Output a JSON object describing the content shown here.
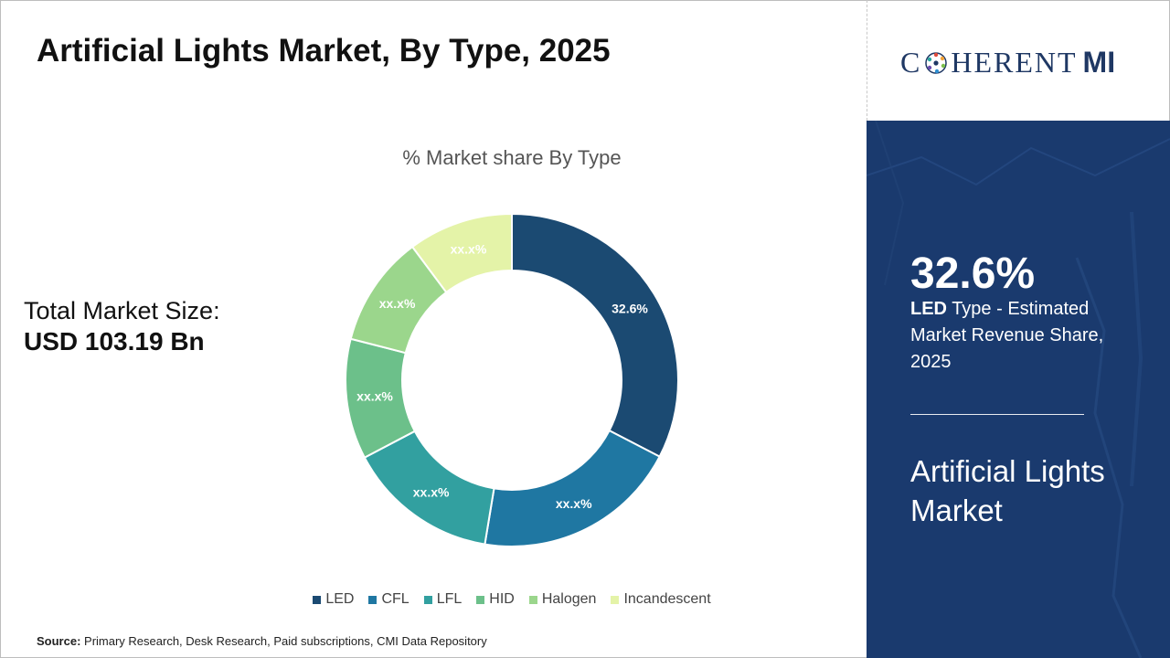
{
  "title": "Artificial Lights Market, By Type, 2025",
  "market_size": {
    "label": "Total Market Size:",
    "value": "USD 103.19 Bn"
  },
  "source": {
    "label": "Source:",
    "text": "Primary Research, Desk Research, Paid subscriptions, CMI Data Repository"
  },
  "logo": {
    "text_left": "C",
    "text_mid": "HERENT",
    "text_right": "MI"
  },
  "side_panel": {
    "highlight_value": "32.6%",
    "highlight_bold": "LED",
    "highlight_text": " Type - Estimated Market Revenue Share, 2025",
    "market_name": "Artificial Lights Market"
  },
  "colors": {
    "panel_bg": "#1a3a6e",
    "brand_navy": "#1f3864"
  },
  "chart_data": {
    "type": "pie",
    "title": "% Market share By Type",
    "donut": true,
    "legend_position": "bottom",
    "categories": [
      "LED",
      "CFL",
      "LFL",
      "HID",
      "Halogen",
      "Incandescent"
    ],
    "values": [
      32.6,
      20.0,
      14.7,
      11.7,
      10.8,
      10.2
    ],
    "data_labels": [
      "32.6%",
      "xx.x%",
      "xx.x%",
      "xx.x%",
      "xx.x%",
      "xx.x%"
    ],
    "colors": [
      "#1b4a72",
      "#1f77a2",
      "#32a0a0",
      "#6cc08a",
      "#9bd68c",
      "#e4f3a8"
    ]
  }
}
